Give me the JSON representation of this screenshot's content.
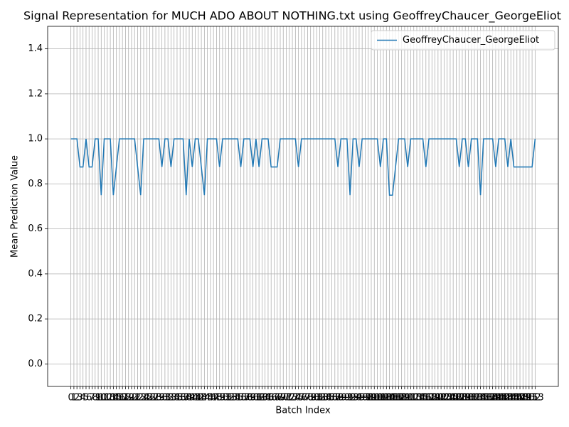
{
  "chart_data": {
    "type": "line",
    "title": "Signal Representation for MUCH ADO ABOUT NOTHING.txt using GeoffreyChaucer_GeorgeEliot",
    "xlabel": "Batch Index",
    "ylabel": "Mean Prediction Value",
    "x": [
      0,
      1,
      2,
      3,
      4,
      5,
      6,
      7,
      8,
      9,
      10,
      11,
      12,
      13,
      14,
      15,
      16,
      17,
      18,
      19,
      20,
      21,
      22,
      23,
      24,
      25,
      26,
      27,
      28,
      29,
      30,
      31,
      32,
      33,
      34,
      35,
      36,
      37,
      38,
      39,
      40,
      41,
      42,
      43,
      44,
      45,
      46,
      47,
      48,
      49,
      50,
      51,
      52,
      53,
      54,
      55,
      56,
      57,
      58,
      59,
      60,
      61,
      62,
      63,
      64,
      65,
      66,
      67,
      68,
      69,
      70,
      71,
      72,
      73,
      74,
      75,
      76,
      77,
      78,
      79,
      80,
      81,
      82,
      83,
      84,
      85,
      86,
      87,
      88,
      89,
      90,
      91,
      92,
      93,
      94,
      95,
      96,
      97,
      98,
      99,
      100,
      101,
      102,
      103,
      104,
      105,
      106,
      107,
      108,
      109,
      110,
      111,
      112,
      113,
      114,
      115,
      116,
      117,
      118,
      119,
      120,
      121,
      122,
      123,
      124,
      125,
      126,
      127,
      128,
      129,
      130,
      131,
      132,
      133,
      134,
      135,
      136,
      137,
      138,
      139,
      140,
      141,
      142,
      143,
      144,
      145,
      146,
      147,
      148,
      149,
      150,
      151,
      152,
      153
    ],
    "series": [
      {
        "name": "GeoffreyChaucer_GeorgeEliot",
        "color": "#1f77b4",
        "values": [
          1,
          1,
          1,
          0.875,
          0.875,
          1,
          0.875,
          0.875,
          1,
          1,
          0.75,
          1,
          1,
          1,
          0.75,
          0.875,
          1,
          1,
          1,
          1,
          1,
          1,
          0.875,
          0.75,
          1,
          1,
          1,
          1,
          1,
          1,
          0.875,
          1,
          1,
          0.875,
          1,
          1,
          1,
          1,
          0.75,
          1,
          0.875,
          1,
          1,
          0.875,
          0.75,
          1,
          1,
          1,
          1,
          0.875,
          1,
          1,
          1,
          1,
          1,
          1,
          0.875,
          1,
          1,
          1,
          0.875,
          1,
          0.875,
          1,
          1,
          1,
          0.875,
          0.875,
          0.875,
          1,
          1,
          1,
          1,
          1,
          1,
          0.875,
          1,
          1,
          1,
          1,
          1,
          1,
          1,
          1,
          1,
          1,
          1,
          1,
          0.875,
          1,
          1,
          1,
          0.75,
          1,
          1,
          0.875,
          1,
          1,
          1,
          1,
          1,
          1,
          0.875,
          1,
          1,
          0.75,
          0.75,
          0.875,
          1,
          1,
          1,
          0.875,
          1,
          1,
          1,
          1,
          1,
          0.875,
          1,
          1,
          1,
          1,
          1,
          1,
          1,
          1,
          1,
          1,
          0.875,
          1,
          1,
          0.875,
          1,
          1,
          1,
          0.75,
          1,
          1,
          1,
          1,
          0.875,
          1,
          1,
          1,
          0.875,
          1,
          0.875,
          0.875,
          0.875,
          0.875,
          0.875,
          0.875,
          0.875,
          1
        ]
      }
    ],
    "xlim": [
      -7.65,
      160.65
    ],
    "ylim": [
      -0.1,
      1.5
    ],
    "xticks": [
      0,
      1,
      2,
      3,
      4,
      5,
      6,
      7,
      8,
      9,
      10,
      11,
      12,
      13,
      14,
      15,
      16,
      17,
      18,
      19,
      20,
      21,
      22,
      23,
      24,
      25,
      26,
      27,
      28,
      29,
      30,
      31,
      32,
      33,
      34,
      35,
      36,
      37,
      38,
      39,
      40,
      41,
      42,
      43,
      44,
      45,
      46,
      47,
      48,
      49,
      50,
      51,
      52,
      53,
      54,
      55,
      56,
      57,
      58,
      59,
      60,
      61,
      62,
      63,
      64,
      65,
      66,
      67,
      68,
      69,
      70,
      71,
      72,
      73,
      74,
      75,
      76,
      77,
      78,
      79,
      80,
      81,
      82,
      83,
      84,
      85,
      86,
      87,
      88,
      89,
      90,
      91,
      92,
      93,
      94,
      95,
      96,
      97,
      98,
      99,
      100,
      101,
      102,
      103,
      104,
      105,
      106,
      107,
      108,
      109,
      110,
      111,
      112,
      113,
      114,
      115,
      116,
      117,
      118,
      119,
      120,
      121,
      122,
      123,
      124,
      125,
      126,
      127,
      128,
      129,
      130,
      131,
      132,
      133,
      134,
      135,
      136,
      137,
      138,
      139,
      140,
      141,
      142,
      143,
      144,
      145,
      146,
      147,
      148,
      149,
      150,
      151,
      152,
      153
    ],
    "yticks": [
      {
        "value": 0,
        "label": "0.0"
      },
      0.2,
      0.4,
      0.6,
      0.8,
      {
        "value": 1,
        "label": "1.0"
      },
      1.2,
      1.4
    ],
    "grid": true,
    "legend": "upper right"
  }
}
